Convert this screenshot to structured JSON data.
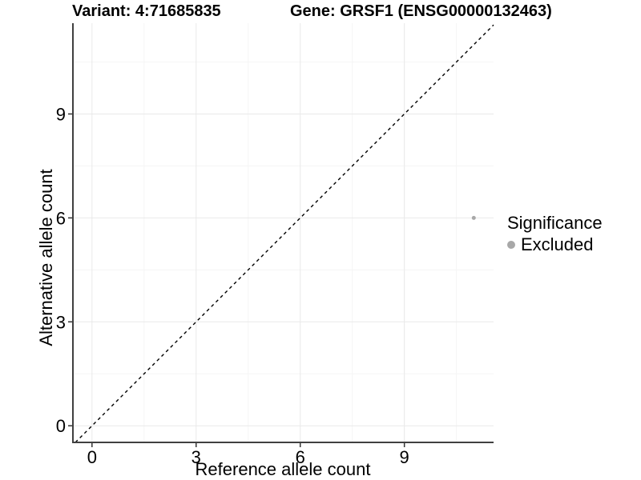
{
  "chart_data": {
    "type": "scatter",
    "titles": {
      "variant": "Variant: 4:71685835",
      "gene": "Gene: GRSF1 (ENSG00000132463)"
    },
    "xlabel": "Reference allele count",
    "ylabel": "Alternative allele count",
    "xticks": [
      0,
      3,
      6,
      9
    ],
    "yticks": [
      0,
      3,
      6,
      9
    ],
    "xlim": [
      -0.55,
      11.57
    ],
    "ylim": [
      -0.48,
      11.62
    ],
    "grid": {
      "major": true,
      "minor": true
    },
    "points": [
      {
        "x": 11,
        "y": 6,
        "series": "Excluded"
      }
    ],
    "reference_line": {
      "type": "identity",
      "equation": "y = x",
      "style": "dashed"
    },
    "legend": {
      "position": "right",
      "title": "Significance",
      "entries": [
        {
          "label": "Excluded",
          "color": "#a8a8a8"
        }
      ]
    },
    "colors": {
      "point": "#a8a8a8",
      "reference_line": "#000000",
      "axis_line": "#404040",
      "tick": "#333333",
      "grid_major": "#e9e9e9",
      "grid_minor": "#f5f5f5",
      "text": "#000000",
      "background": "#ffffff"
    }
  }
}
